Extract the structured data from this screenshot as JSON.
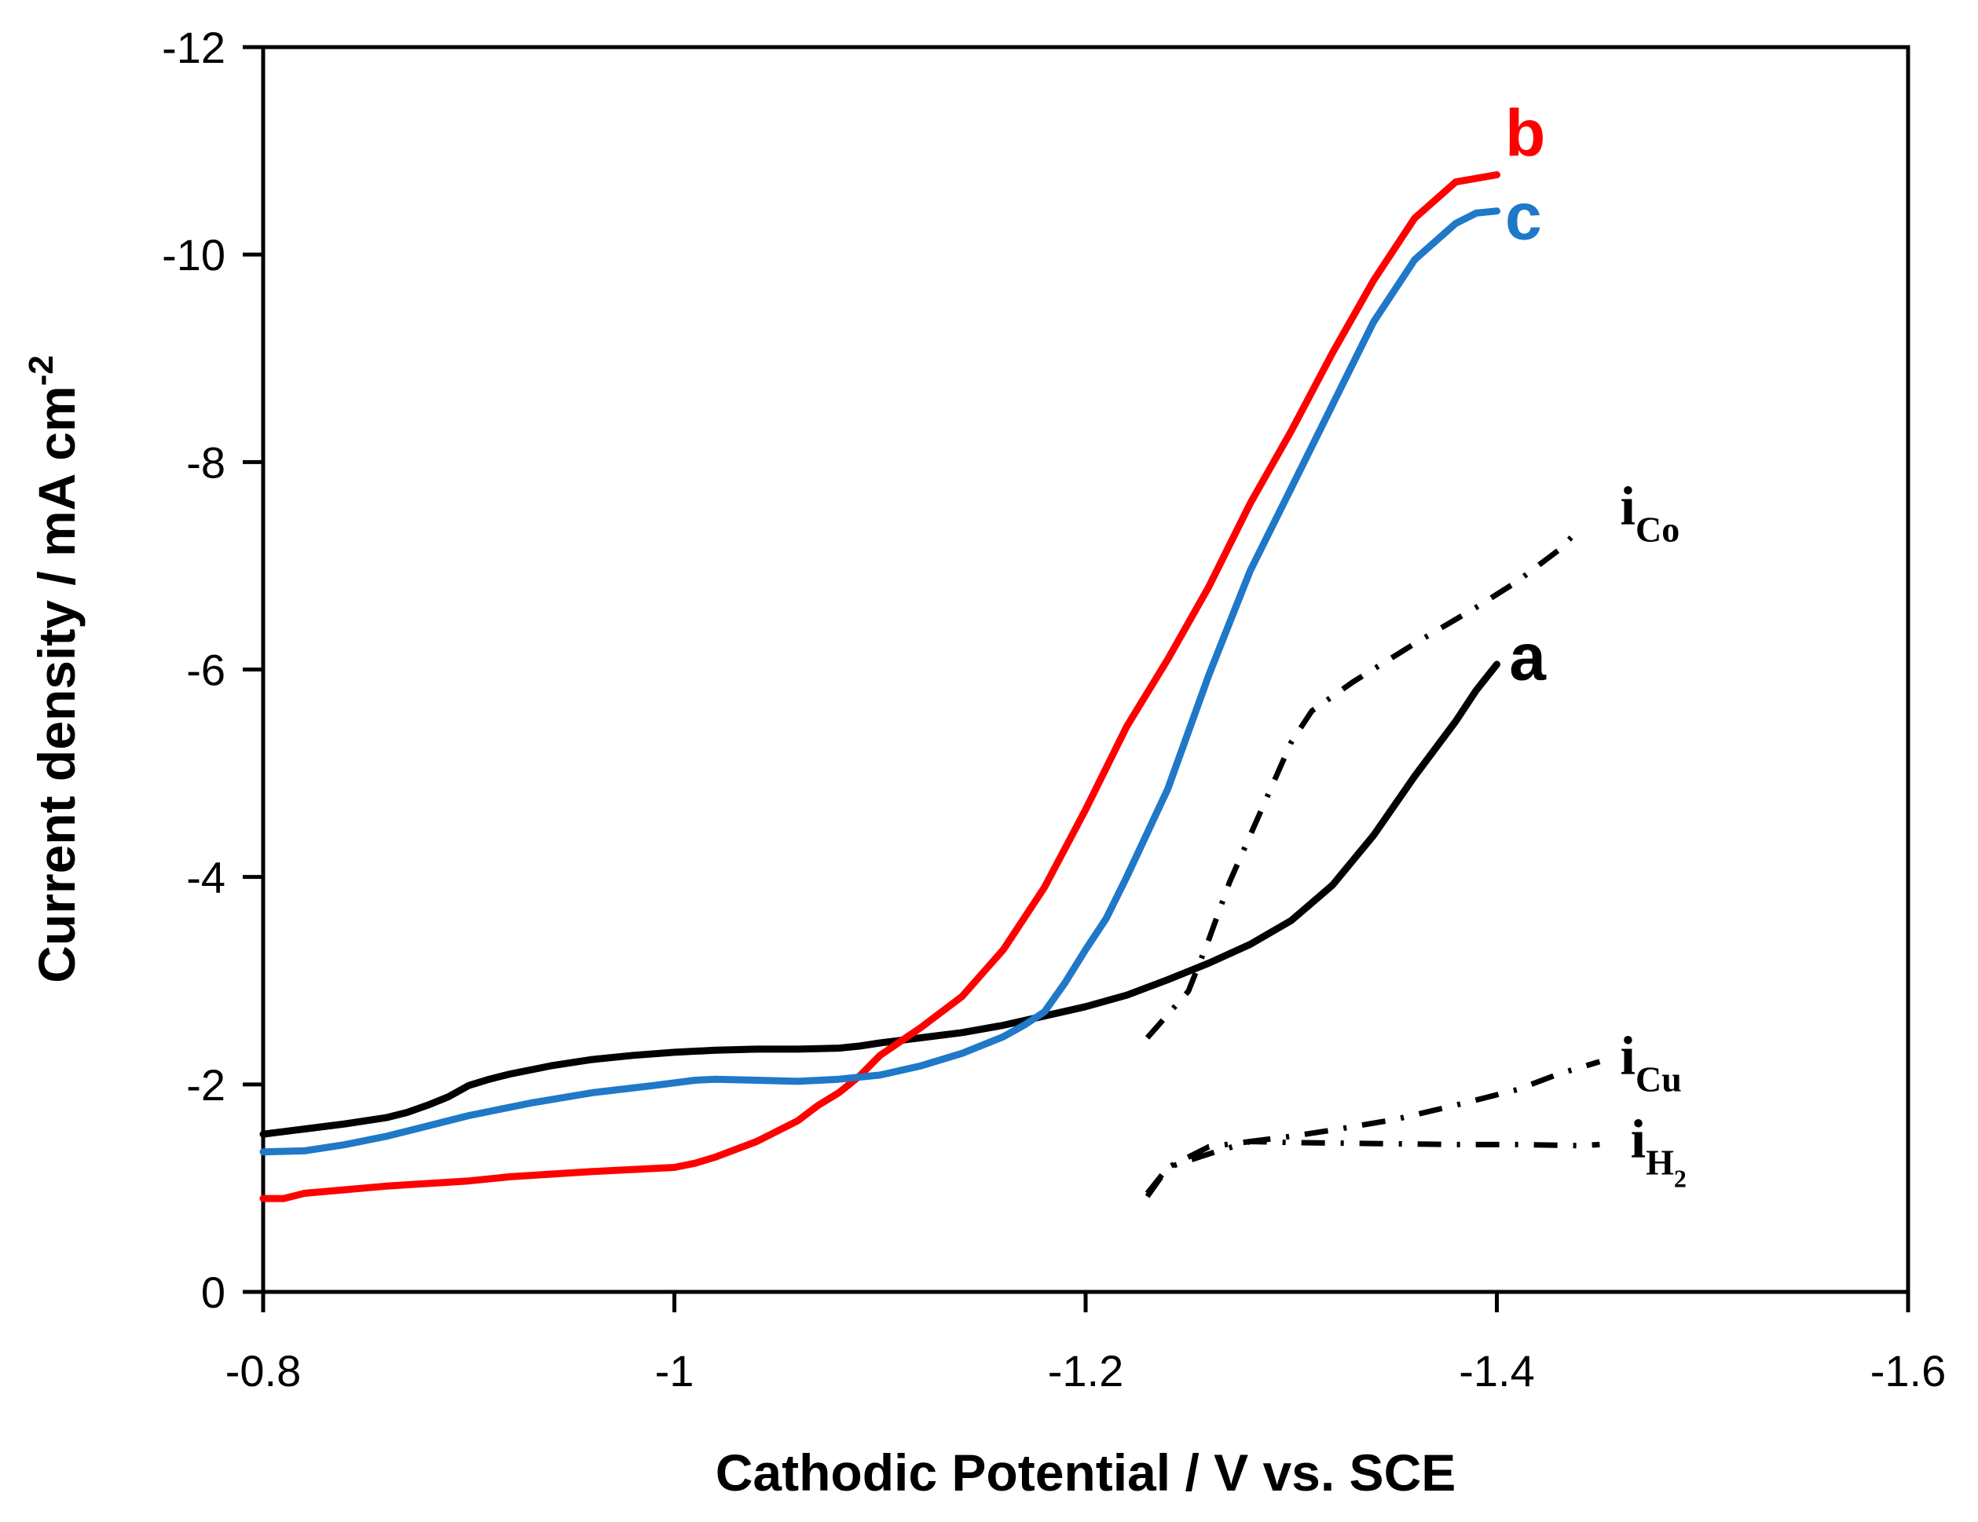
{
  "chart_data": {
    "type": "line",
    "xlabel": "Cathodic Potential / V vs. SCE",
    "ylabel": "Current density / mA cm",
    "ylabel_sup": "-2",
    "xlim": [
      -0.8,
      -1.6
    ],
    "ylim": [
      0,
      -12
    ],
    "x_ticks": [
      -0.8,
      -1.0,
      -1.2,
      -1.4,
      -1.6
    ],
    "x_tick_labels": [
      "-0.8",
      "-1",
      "-1.2",
      "-1.4",
      "-1.6"
    ],
    "y_ticks": [
      0,
      -2,
      -4,
      -6,
      -8,
      -10,
      -12
    ],
    "y_tick_labels": [
      "0",
      "-2",
      "-4",
      "-6",
      "-8",
      "-10",
      "-12"
    ],
    "grid": false,
    "series": [
      {
        "name": "a",
        "label": "a",
        "color": "#000000",
        "style": "solid",
        "label_at": [
          -1.406,
          -5.9
        ],
        "points": [
          [
            -0.8,
            -1.52
          ],
          [
            -0.82,
            -1.57
          ],
          [
            -0.84,
            -1.62
          ],
          [
            -0.86,
            -1.68
          ],
          [
            -0.87,
            -1.73
          ],
          [
            -0.88,
            -1.8
          ],
          [
            -0.89,
            -1.88
          ],
          [
            -0.9,
            -1.99
          ],
          [
            -0.91,
            -2.05
          ],
          [
            -0.92,
            -2.1
          ],
          [
            -0.94,
            -2.18
          ],
          [
            -0.96,
            -2.24
          ],
          [
            -0.98,
            -2.28
          ],
          [
            -1.0,
            -2.31
          ],
          [
            -1.02,
            -2.33
          ],
          [
            -1.04,
            -2.34
          ],
          [
            -1.06,
            -2.34
          ],
          [
            -1.08,
            -2.35
          ],
          [
            -1.09,
            -2.37
          ],
          [
            -1.1,
            -2.4
          ],
          [
            -1.12,
            -2.45
          ],
          [
            -1.14,
            -2.5
          ],
          [
            -1.16,
            -2.57
          ],
          [
            -1.18,
            -2.66
          ],
          [
            -1.2,
            -2.75
          ],
          [
            -1.22,
            -2.86
          ],
          [
            -1.24,
            -3.01
          ],
          [
            -1.26,
            -3.17
          ],
          [
            -1.28,
            -3.35
          ],
          [
            -1.3,
            -3.58
          ],
          [
            -1.32,
            -3.92
          ],
          [
            -1.34,
            -4.4
          ],
          [
            -1.36,
            -4.97
          ],
          [
            -1.38,
            -5.5
          ],
          [
            -1.39,
            -5.8
          ],
          [
            -1.4,
            -6.05
          ]
        ]
      },
      {
        "name": "b",
        "label": "b",
        "color": "#ff0000",
        "style": "solid",
        "label_at": [
          -1.404,
          -10.95
        ],
        "points": [
          [
            -0.8,
            -0.9
          ],
          [
            -0.81,
            -0.9
          ],
          [
            -0.82,
            -0.95
          ],
          [
            -0.86,
            -1.02
          ],
          [
            -0.9,
            -1.07
          ],
          [
            -0.92,
            -1.11
          ],
          [
            -0.96,
            -1.16
          ],
          [
            -1.0,
            -1.2
          ],
          [
            -1.01,
            -1.24
          ],
          [
            -1.02,
            -1.3
          ],
          [
            -1.04,
            -1.45
          ],
          [
            -1.06,
            -1.65
          ],
          [
            -1.07,
            -1.8
          ],
          [
            -1.08,
            -1.92
          ],
          [
            -1.09,
            -2.08
          ],
          [
            -1.1,
            -2.28
          ],
          [
            -1.12,
            -2.55
          ],
          [
            -1.14,
            -2.85
          ],
          [
            -1.16,
            -3.3
          ],
          [
            -1.18,
            -3.9
          ],
          [
            -1.2,
            -4.65
          ],
          [
            -1.22,
            -5.45
          ],
          [
            -1.24,
            -6.1
          ],
          [
            -1.26,
            -6.8
          ],
          [
            -1.28,
            -7.6
          ],
          [
            -1.3,
            -8.3
          ],
          [
            -1.32,
            -9.05
          ],
          [
            -1.34,
            -9.75
          ],
          [
            -1.36,
            -10.35
          ],
          [
            -1.38,
            -10.7
          ],
          [
            -1.4,
            -10.77
          ]
        ]
      },
      {
        "name": "c",
        "label": "c",
        "color": "#1f78c8",
        "style": "solid",
        "label_at": [
          -1.404,
          -10.15
        ],
        "points": [
          [
            -0.8,
            -1.35
          ],
          [
            -0.82,
            -1.36
          ],
          [
            -0.84,
            -1.42
          ],
          [
            -0.86,
            -1.5
          ],
          [
            -0.88,
            -1.6
          ],
          [
            -0.9,
            -1.7
          ],
          [
            -0.93,
            -1.82
          ],
          [
            -0.96,
            -1.92
          ],
          [
            -0.99,
            -1.99
          ],
          [
            -1.01,
            -2.04
          ],
          [
            -1.02,
            -2.05
          ],
          [
            -1.04,
            -2.04
          ],
          [
            -1.06,
            -2.03
          ],
          [
            -1.08,
            -2.05
          ],
          [
            -1.1,
            -2.09
          ],
          [
            -1.12,
            -2.18
          ],
          [
            -1.14,
            -2.3
          ],
          [
            -1.16,
            -2.46
          ],
          [
            -1.17,
            -2.57
          ],
          [
            -1.18,
            -2.7
          ],
          [
            -1.19,
            -2.98
          ],
          [
            -1.2,
            -3.3
          ],
          [
            -1.21,
            -3.6
          ],
          [
            -1.22,
            -4.0
          ],
          [
            -1.24,
            -4.85
          ],
          [
            -1.26,
            -5.95
          ],
          [
            -1.28,
            -6.95
          ],
          [
            -1.3,
            -7.75
          ],
          [
            -1.32,
            -8.55
          ],
          [
            -1.34,
            -9.35
          ],
          [
            -1.36,
            -9.95
          ],
          [
            -1.38,
            -10.3
          ],
          [
            -1.39,
            -10.4
          ],
          [
            -1.4,
            -10.42
          ]
        ]
      },
      {
        "name": "iCo",
        "label": "i",
        "sub": "Co",
        "color": "#000000",
        "style": "dashdot",
        "label_at": [
          -1.46,
          -7.4
        ],
        "points": [
          [
            -1.23,
            -2.45
          ],
          [
            -1.25,
            -2.9
          ],
          [
            -1.26,
            -3.4
          ],
          [
            -1.27,
            -3.95
          ],
          [
            -1.28,
            -4.4
          ],
          [
            -1.29,
            -4.85
          ],
          [
            -1.3,
            -5.3
          ],
          [
            -1.31,
            -5.6
          ],
          [
            -1.33,
            -5.88
          ],
          [
            -1.36,
            -6.25
          ],
          [
            -1.39,
            -6.6
          ],
          [
            -1.41,
            -6.85
          ],
          [
            -1.43,
            -7.15
          ],
          [
            -1.44,
            -7.35
          ]
        ]
      },
      {
        "name": "iCu",
        "label": "i",
        "sub": "Cu",
        "color": "#000000",
        "style": "dashdot",
        "label_at": [
          -1.46,
          -2.1
        ],
        "points": [
          [
            -1.23,
            -0.95
          ],
          [
            -1.24,
            -1.2
          ],
          [
            -1.26,
            -1.33
          ],
          [
            -1.28,
            -1.45
          ],
          [
            -1.3,
            -1.5
          ],
          [
            -1.32,
            -1.56
          ],
          [
            -1.35,
            -1.66
          ],
          [
            -1.38,
            -1.8
          ],
          [
            -1.41,
            -1.95
          ],
          [
            -1.43,
            -2.1
          ],
          [
            -1.45,
            -2.22
          ]
        ]
      },
      {
        "name": "iH2",
        "label": "i",
        "sub": "H",
        "subsub": "2",
        "color": "#000000",
        "style": "dashdot",
        "label_at": [
          -1.465,
          -1.3
        ],
        "points": [
          [
            -1.23,
            -0.92
          ],
          [
            -1.24,
            -1.2
          ],
          [
            -1.26,
            -1.4
          ],
          [
            -1.28,
            -1.45
          ],
          [
            -1.3,
            -1.44
          ],
          [
            -1.34,
            -1.43
          ],
          [
            -1.38,
            -1.42
          ],
          [
            -1.41,
            -1.42
          ],
          [
            -1.44,
            -1.41
          ],
          [
            -1.45,
            -1.42
          ]
        ]
      }
    ]
  }
}
